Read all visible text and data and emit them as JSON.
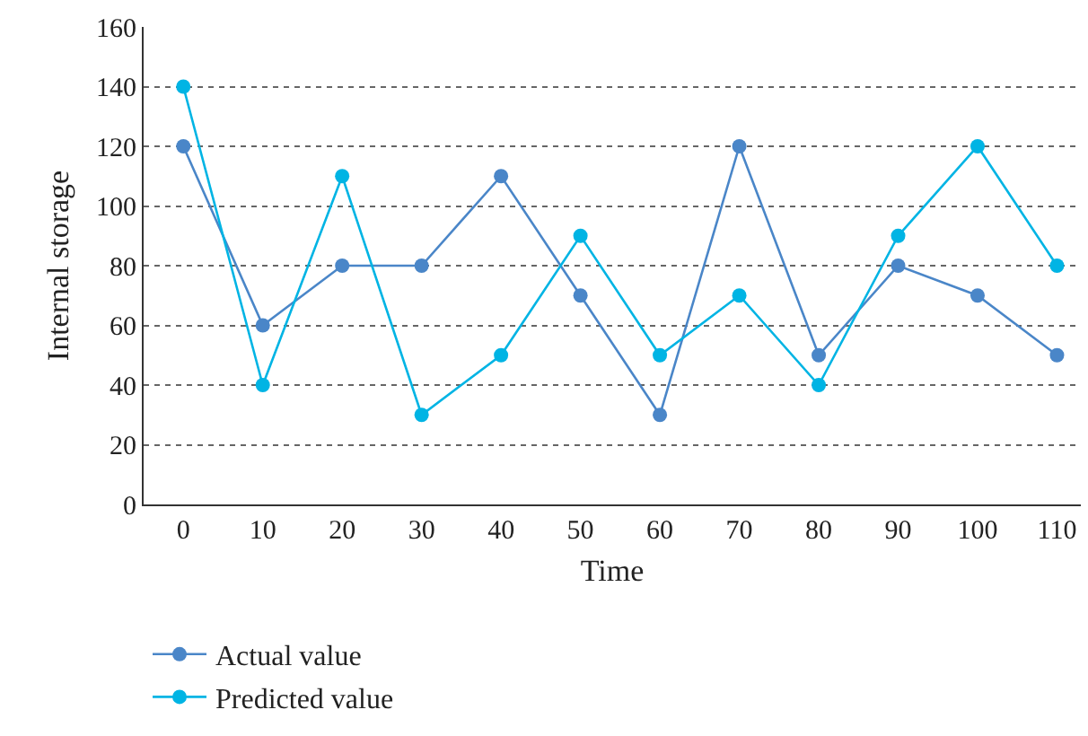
{
  "chart_data": {
    "type": "line",
    "xlabel": "Time",
    "ylabel": "Internal storage",
    "x": [
      0,
      10,
      20,
      30,
      40,
      50,
      60,
      70,
      80,
      90,
      100,
      110
    ],
    "series": [
      {
        "name": "Actual value",
        "color": "#4a86c8",
        "values": [
          120,
          60,
          80,
          80,
          110,
          70,
          30,
          120,
          50,
          80,
          70,
          50
        ]
      },
      {
        "name": "Predicted value",
        "color": "#00b4e4",
        "values": [
          140,
          40,
          110,
          30,
          50,
          90,
          50,
          70,
          40,
          90,
          120,
          80
        ]
      }
    ],
    "xlim": [
      -5,
      113
    ],
    "xticks": [
      0,
      10,
      20,
      30,
      40,
      50,
      60,
      70,
      80,
      90,
      100,
      110
    ],
    "ylim": [
      0,
      160
    ],
    "yticks": [
      0,
      20,
      40,
      60,
      80,
      100,
      120,
      140,
      160
    ],
    "grid": "y",
    "legend": "bottom left",
    "marker": "circle",
    "line_style": "solid"
  }
}
